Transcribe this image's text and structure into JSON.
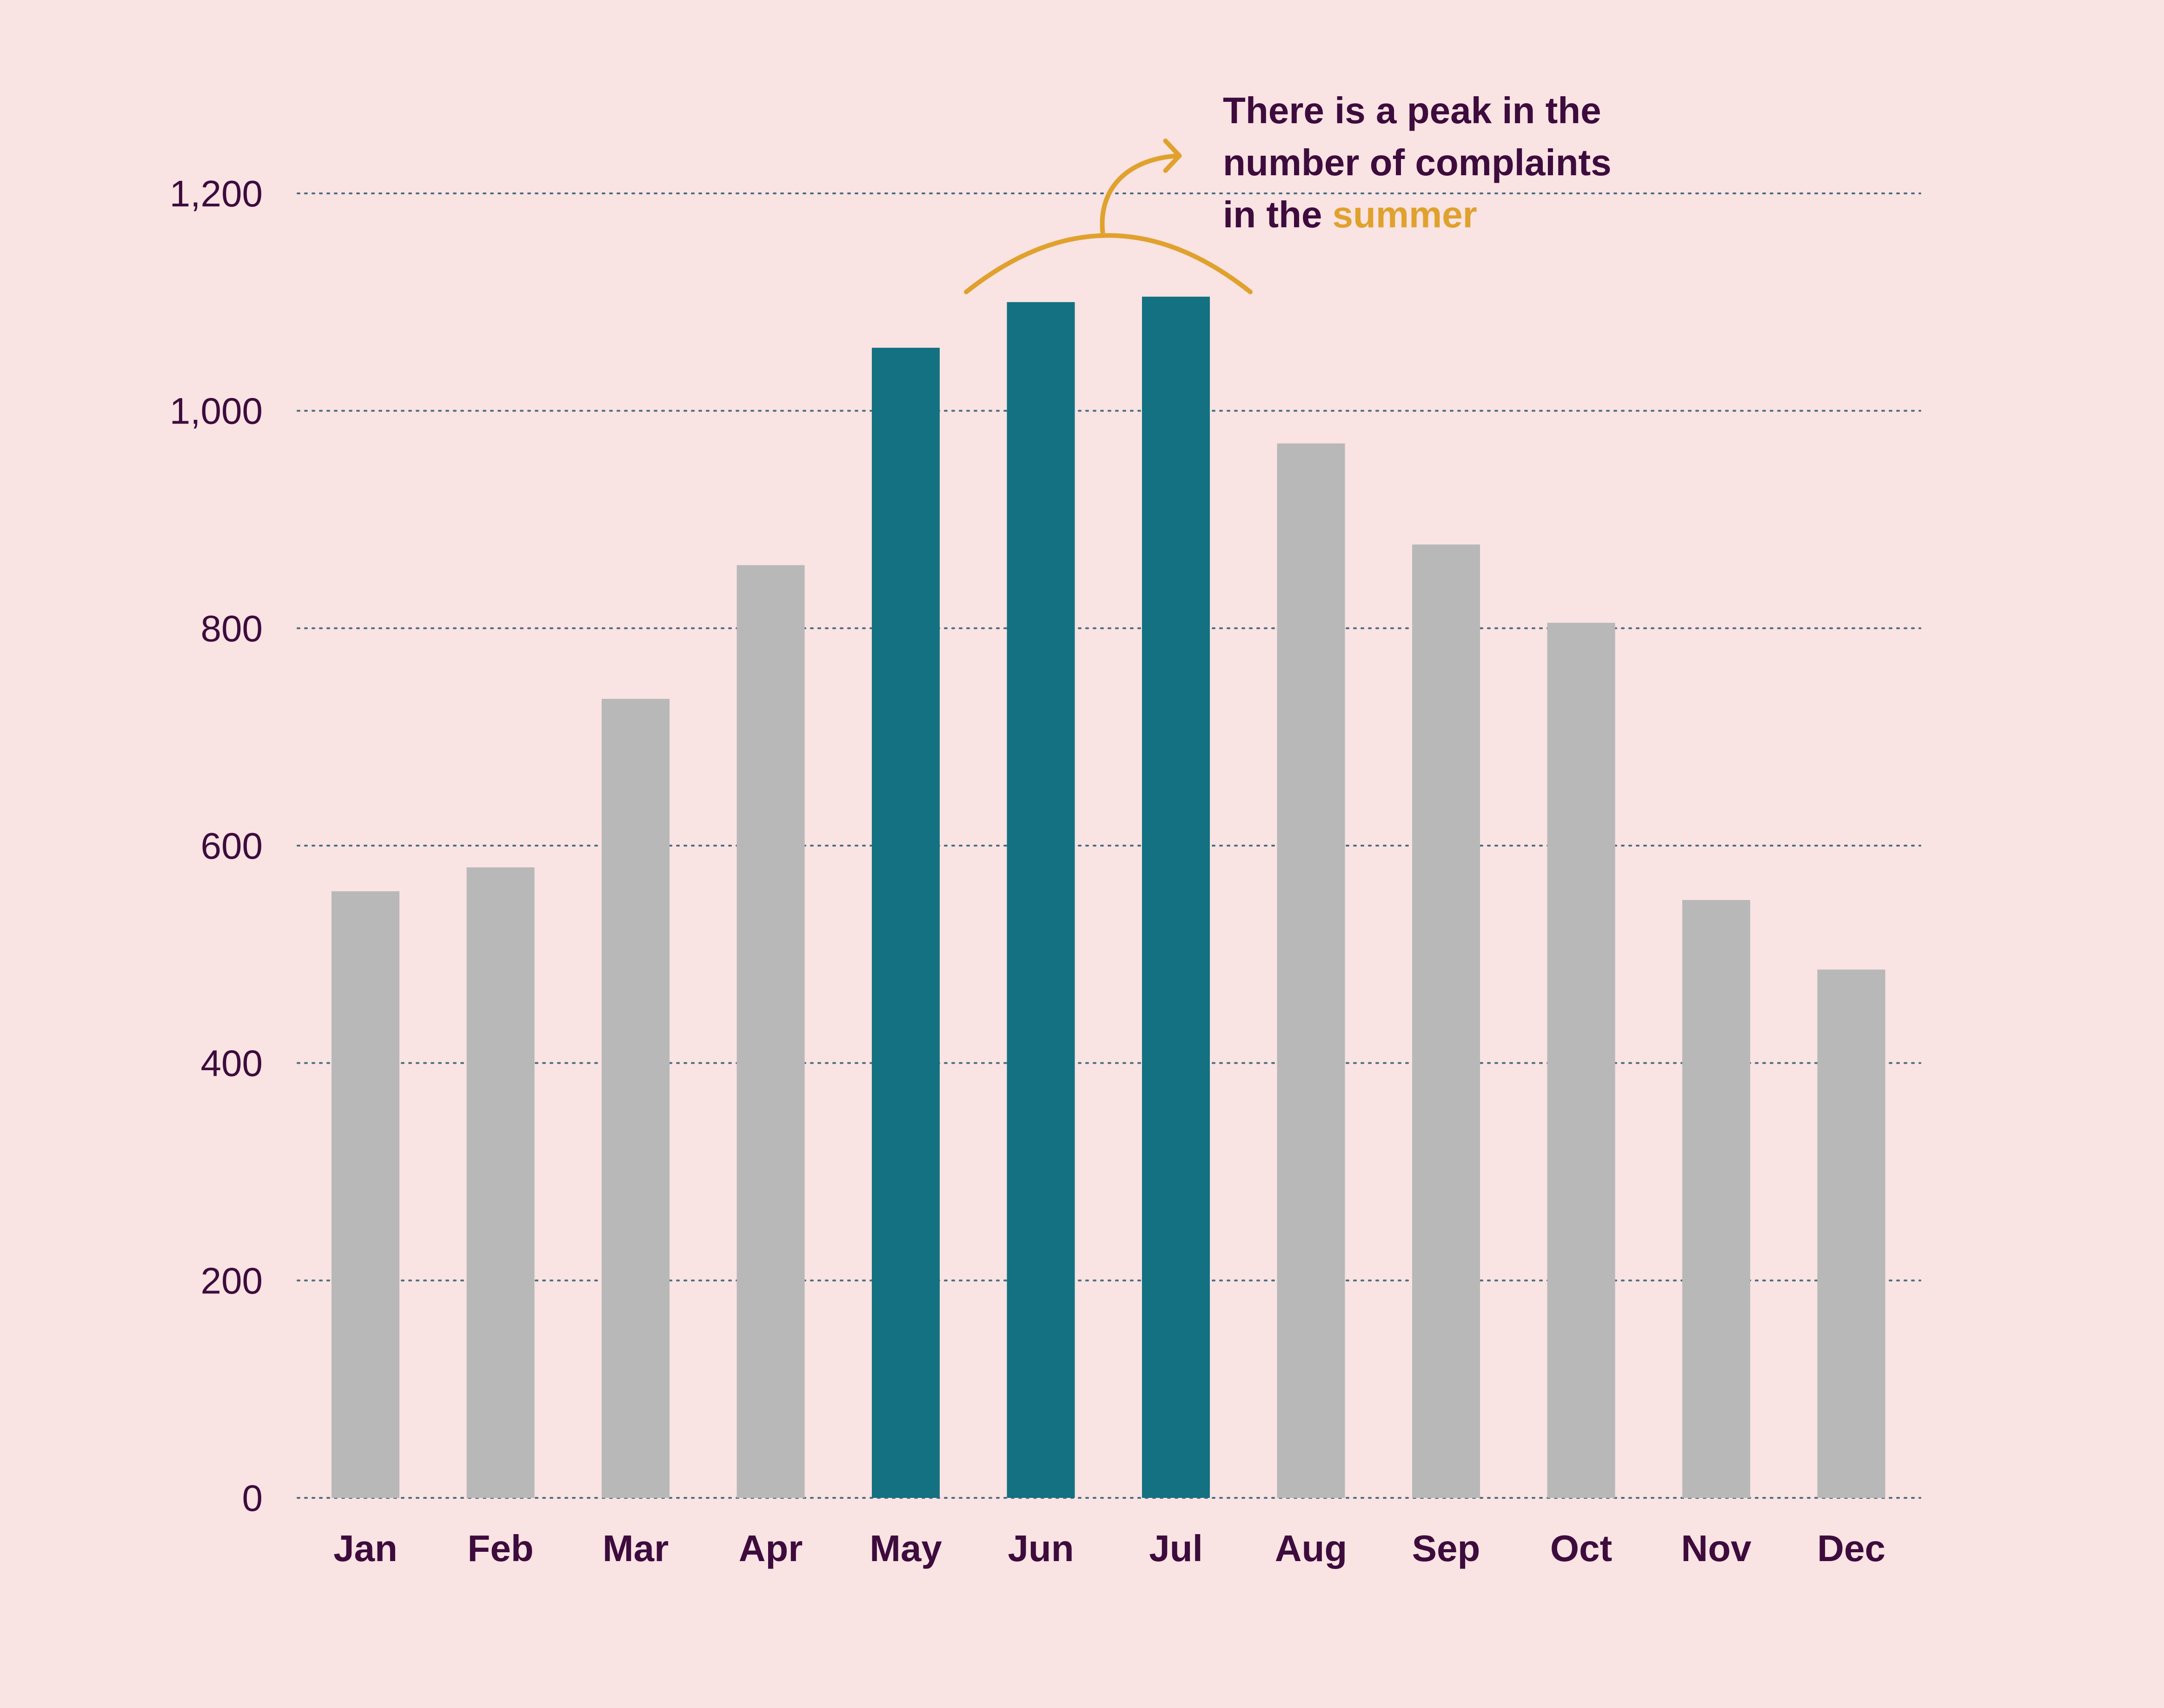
{
  "chart_data": {
    "type": "bar",
    "title": "",
    "xlabel": "",
    "ylabel": "",
    "categories": [
      "Jan",
      "Feb",
      "Mar",
      "Apr",
      "May",
      "Jun",
      "Jul",
      "Aug",
      "Sep",
      "Oct",
      "Nov",
      "Dec"
    ],
    "values": [
      558,
      580,
      735,
      858,
      1058,
      1100,
      1105,
      970,
      877,
      805,
      550,
      486
    ],
    "highlighted": [
      false,
      false,
      false,
      false,
      true,
      true,
      true,
      false,
      false,
      false,
      false,
      false
    ],
    "ylim": [
      0,
      1200
    ],
    "yticks": [
      0,
      200,
      400,
      600,
      800,
      1000,
      1200
    ],
    "ytick_labels": [
      "0",
      "200",
      "400",
      "600",
      "800",
      "1,000",
      "1,200"
    ],
    "grid": "horizontal-dotted",
    "colors": {
      "background": "#f9e3e3",
      "bar": "#b8b8b8",
      "bar_highlight": "#137181",
      "grid": "#4a6e80",
      "text": "#3d0c3d",
      "accent": "#e0a12d"
    },
    "annotation": {
      "lines": [
        {
          "text": "There is a peak in the",
          "highlight": ""
        },
        {
          "text": "number of complaints",
          "highlight": ""
        },
        {
          "text": "in the ",
          "highlight": "summer"
        }
      ],
      "target_categories": [
        "May",
        "Jun",
        "Jul"
      ]
    }
  }
}
